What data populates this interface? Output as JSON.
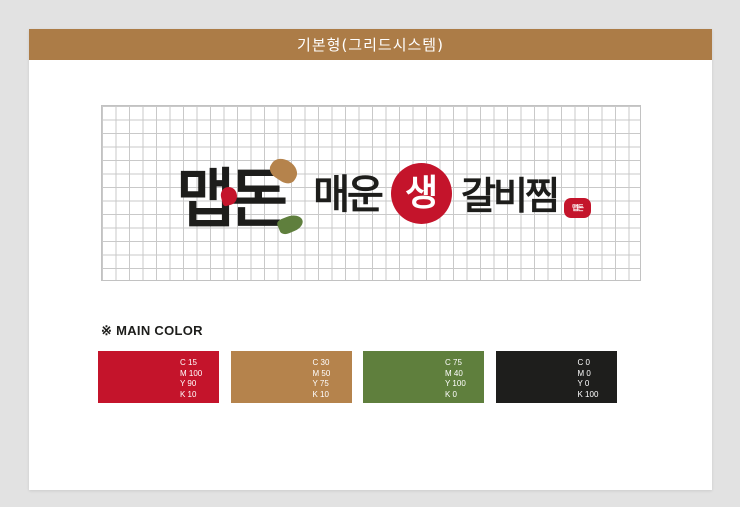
{
  "header": {
    "title": "기본형(그리드시스템)"
  },
  "logo": {
    "wordmark": "맵돈",
    "spicy": "매운",
    "fresh": "생",
    "dish": "갈비찜",
    "seal": "맵돈"
  },
  "main_color": {
    "label": "※ MAIN COLOR",
    "swatches": [
      {
        "name": "red",
        "hex": "#c4142b",
        "lines": [
          "C 15",
          "M 100",
          "Y 90",
          "K 10"
        ]
      },
      {
        "name": "tan",
        "hex": "#b5834c",
        "lines": [
          "C 30",
          "M 50",
          "Y 75",
          "K 10"
        ]
      },
      {
        "name": "green",
        "hex": "#5f7f3d",
        "lines": [
          "C 75",
          "M 40",
          "Y 100",
          "K 0"
        ]
      },
      {
        "name": "black",
        "hex": "#1e1e1c",
        "lines": [
          "C 0",
          "M 0",
          "Y 0",
          "K 100"
        ]
      }
    ]
  },
  "colors": {
    "header_bar": "#ac7c47",
    "logo_red": "#c4142b",
    "logo_tan": "#b5834c",
    "logo_green": "#5f7f3d",
    "background": "#e2e2e2"
  }
}
